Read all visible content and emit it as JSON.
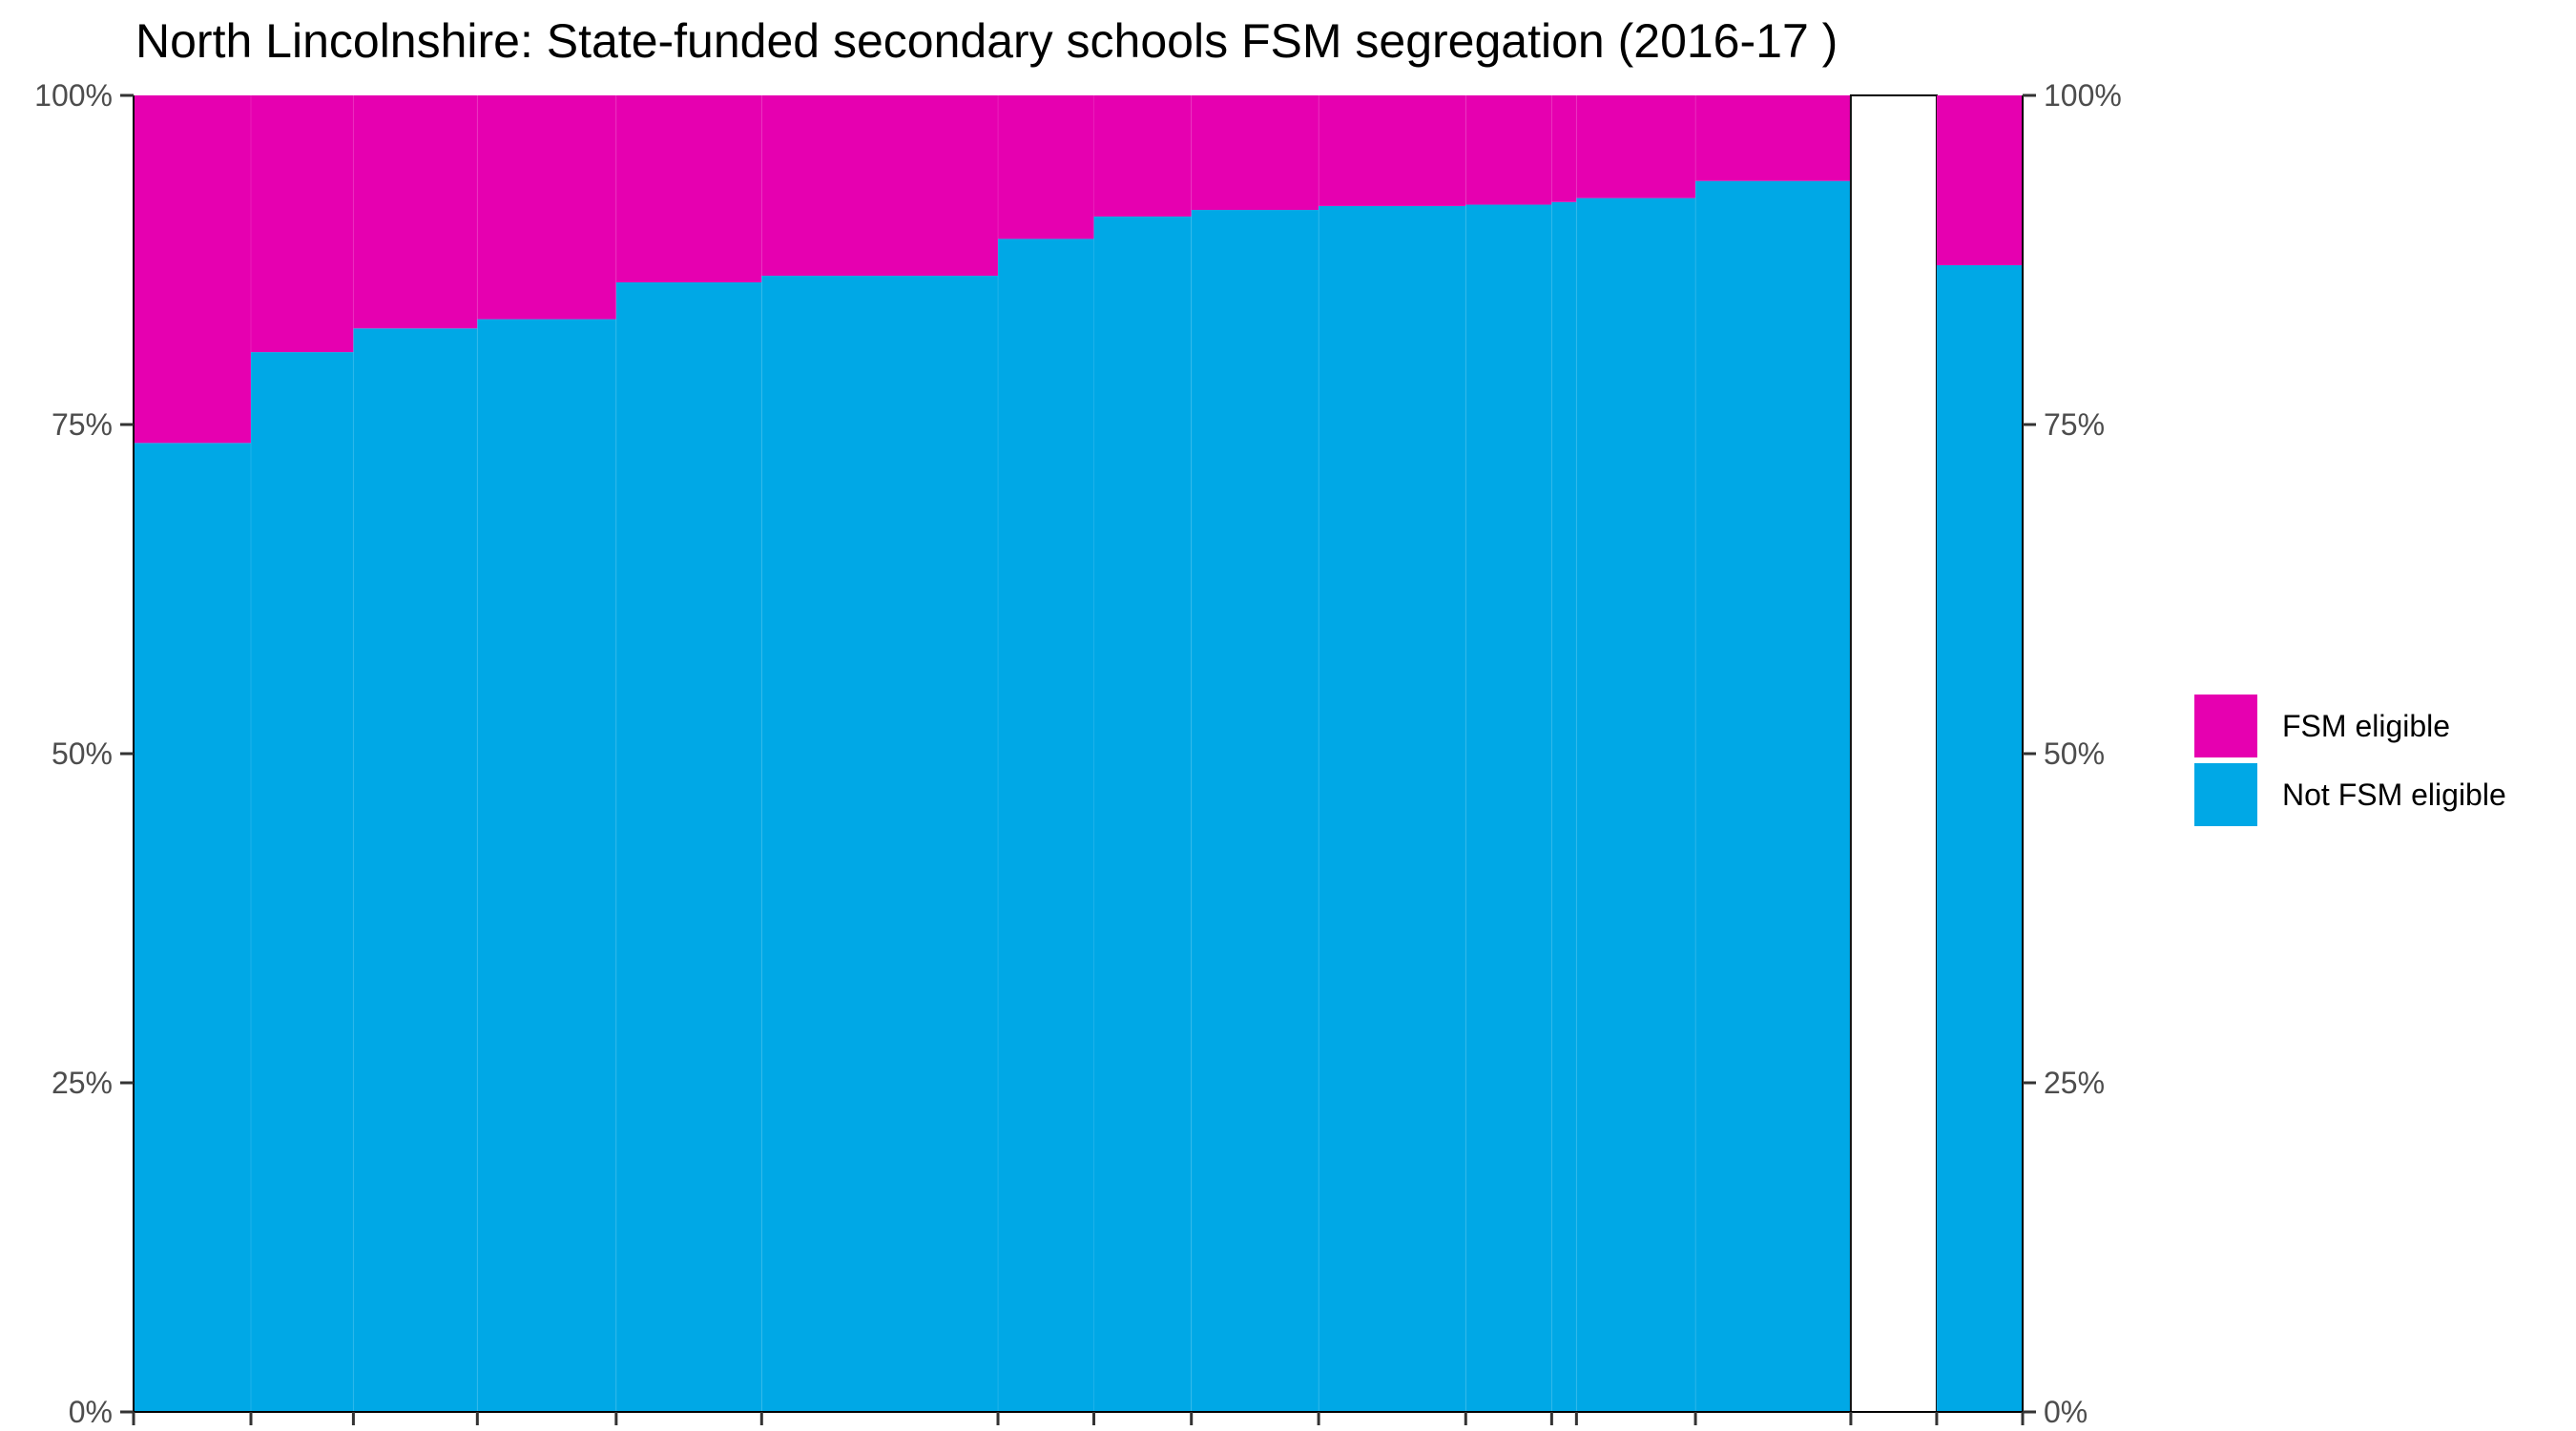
{
  "chart_data": {
    "type": "bar",
    "title": "North Lincolnshire: State-funded secondary schools FSM segregation (2016-17 )",
    "xlabel": "",
    "ylabel": "",
    "ylim": [
      0,
      100
    ],
    "y_ticks": [
      "0%",
      "25%",
      "50%",
      "75%",
      "100%"
    ],
    "stacked": true,
    "variable_width": true,
    "grid": false,
    "legend_position": "right",
    "series": [
      {
        "name": "Not FSM eligible",
        "color": "#00A8E6",
        "values": [
          73.6,
          80.5,
          82.3,
          83.0,
          85.8,
          86.3,
          89.1,
          90.8,
          91.3,
          91.6,
          91.7,
          91.9,
          92.2,
          93.5,
          87.1
        ]
      },
      {
        "name": "FSM eligible",
        "color": "#E600B0",
        "values": [
          26.4,
          19.5,
          17.7,
          17.0,
          14.2,
          13.7,
          10.9,
          9.2,
          8.7,
          8.4,
          8.3,
          8.1,
          7.8,
          6.5,
          12.9
        ]
      }
    ],
    "relative_widths": [
      71,
      62,
      75,
      84,
      88,
      143,
      58,
      59,
      77,
      89,
      52,
      15,
      72,
      94,
      52
    ],
    "gap_after_index": 13
  },
  "legend": {
    "items": [
      {
        "label": "FSM eligible",
        "color": "#E600B0"
      },
      {
        "label": "Not FSM eligible",
        "color": "#00A8E6"
      }
    ]
  }
}
